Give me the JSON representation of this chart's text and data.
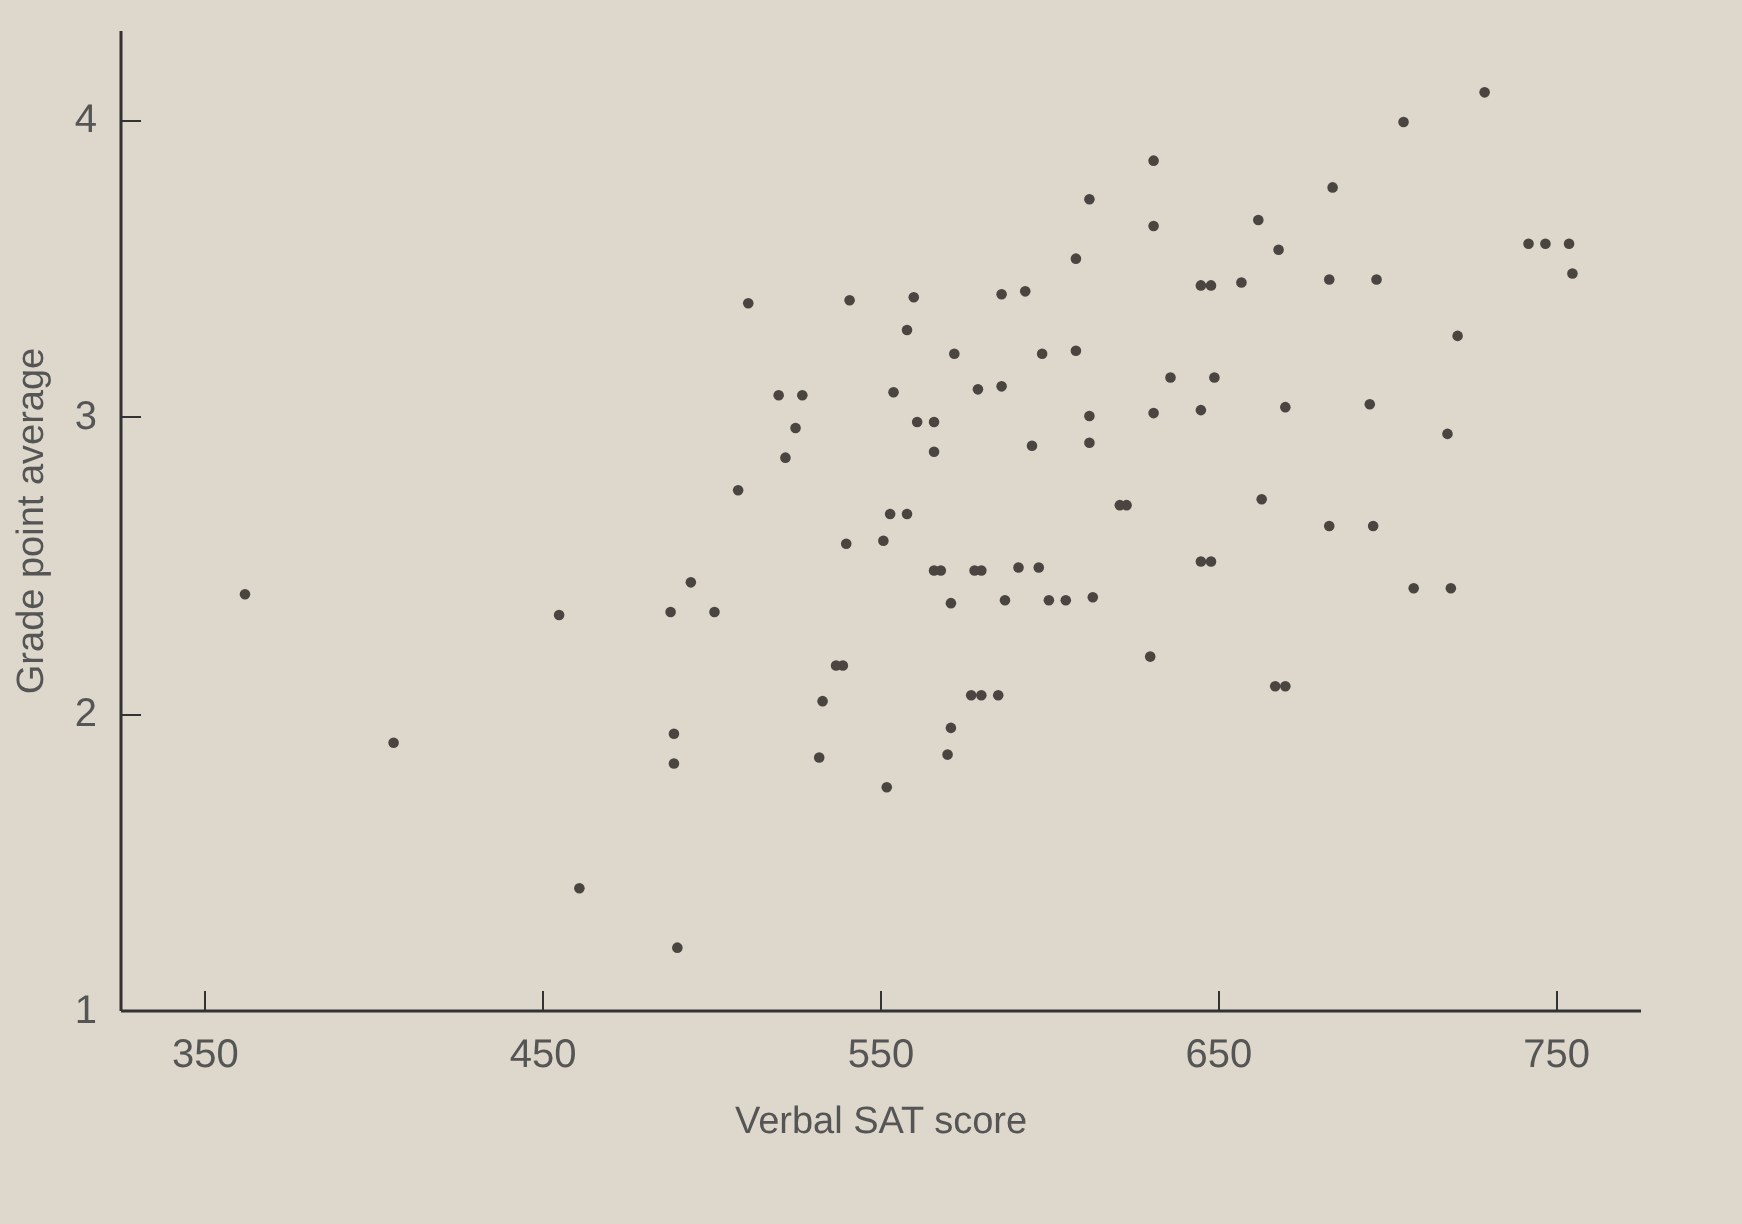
{
  "chart_data": {
    "type": "scatter",
    "xlabel": "Verbal SAT score",
    "ylabel": "Grade point average",
    "xlim": [
      325,
      775
    ],
    "ylim": [
      1,
      4.3
    ],
    "xticks": [
      350,
      450,
      550,
      650,
      750
    ],
    "yticks": [
      1,
      2,
      3,
      4
    ],
    "grid": false,
    "marker": "circle",
    "series": [
      {
        "color": "#4a4540",
        "x": [
          362,
          406,
          455,
          461,
          488,
          494,
          501,
          489,
          489,
          490,
          508,
          511,
          520,
          527,
          525,
          522,
          533,
          532,
          537,
          539,
          540,
          541,
          551,
          552,
          554,
          553,
          558,
          558,
          560,
          631,
          612,
          631,
          662,
          608,
          586,
          593,
          645,
          648,
          657,
          572,
          598,
          608,
          579,
          586,
          636,
          649,
          561,
          566,
          566,
          595,
          612,
          612,
          631,
          645,
          621,
          623,
          663,
          566,
          568,
          578,
          580,
          591,
          597,
          571,
          587,
          600,
          605,
          613,
          645,
          648,
          630,
          577,
          580,
          585,
          571,
          570,
          729,
          705,
          684,
          668,
          683,
          697,
          742,
          747,
          754,
          755,
          721,
          670,
          695,
          718,
          683,
          696,
          708,
          719,
          667,
          670
        ],
        "values": [
          2.4,
          1.9,
          2.33,
          1.41,
          2.34,
          2.44,
          2.34,
          1.93,
          1.83,
          1.21,
          2.75,
          3.38,
          3.07,
          3.07,
          2.96,
          2.86,
          2.04,
          1.85,
          2.16,
          2.16,
          2.57,
          3.39,
          2.58,
          1.75,
          3.08,
          2.67,
          2.67,
          3.29,
          3.4,
          3.86,
          3.73,
          3.64,
          3.66,
          3.53,
          3.41,
          3.42,
          3.44,
          3.44,
          3.45,
          3.21,
          3.21,
          3.22,
          3.09,
          3.1,
          3.13,
          3.13,
          2.98,
          2.98,
          2.88,
          2.9,
          3.0,
          2.91,
          3.01,
          3.02,
          2.7,
          2.7,
          2.72,
          2.48,
          2.48,
          2.48,
          2.48,
          2.49,
          2.49,
          2.37,
          2.38,
          2.38,
          2.38,
          2.39,
          2.51,
          2.51,
          2.19,
          2.06,
          2.06,
          2.06,
          1.95,
          1.86,
          4.09,
          3.99,
          3.77,
          3.56,
          3.46,
          3.46,
          3.58,
          3.58,
          3.58,
          3.48,
          3.27,
          3.03,
          3.04,
          2.94,
          2.63,
          2.63,
          2.42,
          2.42,
          2.09,
          2.09
        ]
      }
    ]
  }
}
